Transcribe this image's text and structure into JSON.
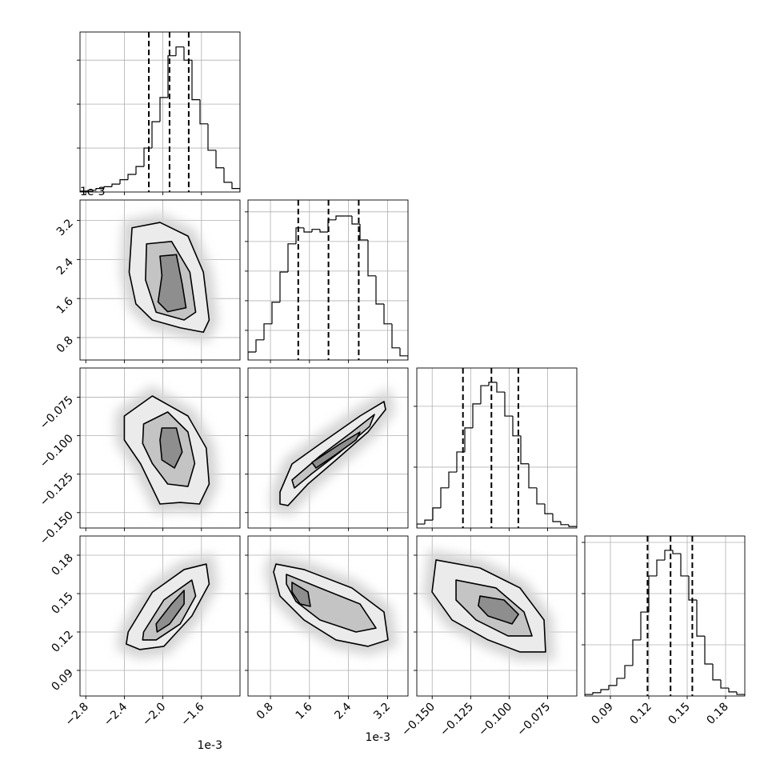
{
  "chart_data": {
    "type": "corner",
    "grid": true,
    "parameters": [
      {
        "offset_label": "1e-3",
        "lim": [
          -2.86,
          -1.2
        ],
        "ticks": [
          {
            "value": -2.8,
            "label": "−2.8"
          },
          {
            "value": -2.4,
            "label": "−2.4"
          },
          {
            "value": -2.0,
            "label": "−2.0"
          },
          {
            "value": -1.6,
            "label": "−1.6"
          }
        ],
        "bins": [
          -2.86,
          -2.777,
          -2.694,
          -2.611,
          -2.528,
          -2.445,
          -2.362,
          -2.279,
          -2.196,
          -2.113,
          -2.03,
          -1.947,
          -1.864,
          -1.781,
          -1.698,
          -1.615,
          -1.532,
          -1.449,
          -1.366,
          -1.283,
          -1.2
        ],
        "counts": [
          2,
          4,
          8,
          12,
          18,
          28,
          40,
          58,
          100,
          160,
          215,
          310,
          330,
          300,
          210,
          155,
          95,
          55,
          22,
          8
        ],
        "hist_ylim": [
          0,
          364
        ],
        "hist_yticks": [
          100,
          200,
          300
        ],
        "quantiles": [
          -2.146,
          -1.931,
          -1.732
        ]
      },
      {
        "offset_label": "1e-3",
        "lim": [
          0.34,
          3.62
        ],
        "ticks": [
          0.8,
          1.6,
          2.4,
          3.2
        ],
        "bins": [
          0.34,
          0.504,
          0.668,
          0.832,
          0.996,
          1.16,
          1.324,
          1.488,
          1.652,
          1.816,
          1.98,
          2.144,
          2.308,
          2.472,
          2.636,
          2.8,
          2.964,
          3.128,
          3.292,
          3.456,
          3.62
        ],
        "counts": [
          27,
          68,
          122,
          195,
          297,
          392,
          446,
          432,
          441,
          432,
          473,
          486,
          486,
          459,
          405,
          284,
          189,
          122,
          41,
          14
        ],
        "hist_ylim": [
          0,
          540
        ],
        "hist_yticks": [
          100,
          200,
          300,
          400,
          500
        ],
        "quantiles": [
          1.37,
          1.99,
          2.61
        ]
      },
      {
        "lim": [
          -0.16,
          -0.056
        ],
        "ticks": [
          {
            "value": -0.15,
            "label": "−0.150"
          },
          {
            "value": -0.125,
            "label": "−0.125"
          },
          {
            "value": -0.1,
            "label": "−0.100"
          },
          {
            "value": -0.075,
            "label": "−0.075"
          }
        ],
        "bins": [
          -0.16,
          -0.1548,
          -0.1496,
          -0.1444,
          -0.1392,
          -0.134,
          -0.1288,
          -0.1236,
          -0.1184,
          -0.1132,
          -0.108,
          -0.1028,
          -0.0976,
          -0.0924,
          -0.0872,
          -0.082,
          -0.0768,
          -0.0716,
          -0.0664,
          -0.0612,
          -0.056
        ],
        "counts": [
          13,
          26,
          66,
          132,
          184,
          250,
          329,
          408,
          468,
          479,
          447,
          368,
          303,
          211,
          132,
          79,
          47,
          21,
          11,
          5
        ],
        "hist_ylim": [
          0,
          526
        ],
        "hist_yticks": [
          200,
          400
        ],
        "quantiles": [
          -0.13,
          -0.1115,
          -0.094
        ]
      },
      {
        "lim": [
          0.07,
          0.195
        ],
        "ticks": [
          0.09,
          0.12,
          0.15,
          0.18
        ],
        "bins": [
          0.07,
          0.07625,
          0.0825,
          0.08875,
          0.095,
          0.10125,
          0.1075,
          0.11375,
          0.12,
          0.12625,
          0.1325,
          0.13875,
          0.145,
          0.15125,
          0.1575,
          0.16375,
          0.17,
          0.17625,
          0.1825,
          0.18875,
          0.195
        ],
        "counts": [
          6,
          13,
          25,
          41,
          69,
          119,
          219,
          328,
          469,
          531,
          569,
          556,
          469,
          375,
          234,
          125,
          63,
          31,
          16,
          6
        ],
        "hist_ylim": [
          0,
          625
        ],
        "hist_yticks": [
          200,
          400,
          600
        ],
        "quantiles": [
          0.119,
          0.137,
          0.154
        ]
      }
    ],
    "pairs": [
      {
        "x_param": 0,
        "y_param": 1,
        "contours": [
          {
            "x": [
              -2.32,
              -2.03,
              -1.74,
              -1.58,
              -1.52,
              -1.58,
              -1.82,
              -2.11,
              -2.28,
              -2.35
            ],
            "y": [
              3.05,
              3.16,
              2.88,
              2.14,
              1.16,
              0.91,
              1.0,
              1.16,
              1.49,
              2.14
            ]
          },
          {
            "x": [
              -2.17,
              -1.91,
              -1.72,
              -1.66,
              -1.78,
              -2.07,
              -2.18
            ],
            "y": [
              2.72,
              2.77,
              2.14,
              1.32,
              1.16,
              1.32,
              1.98
            ]
          },
          {
            "x": [
              -2.03,
              -1.86,
              -1.8,
              -1.76,
              -1.95,
              -2.05,
              -2.01
            ],
            "y": [
              2.47,
              2.5,
              1.9,
              1.41,
              1.33,
              1.53,
              2.07
            ]
          }
        ]
      },
      {
        "x_param": 0,
        "y_param": 2,
        "contours": [
          {
            "x": [
              -2.4,
              -2.11,
              -1.74,
              -1.55,
              -1.52,
              -1.62,
              -1.82,
              -2.03,
              -2.11,
              -2.23,
              -2.4
            ],
            "y": [
              -0.0872,
              -0.0742,
              -0.0872,
              -0.108,
              -0.1314,
              -0.1444,
              -0.1434,
              -0.1444,
              -0.134,
              -0.1184,
              -0.1028
            ]
          },
          {
            "x": [
              -2.2,
              -1.95,
              -1.74,
              -1.67,
              -1.74,
              -1.95,
              -2.11,
              -2.21
            ],
            "y": [
              -0.0924,
              -0.0846,
              -0.0976,
              -0.118,
              -0.133,
              -0.1314,
              -0.118,
              -0.105
            ]
          },
          {
            "x": [
              -2.01,
              -1.86,
              -1.8,
              -1.88,
              -2.01,
              -2.03
            ],
            "y": [
              -0.095,
              -0.095,
              -0.1106,
              -0.121,
              -0.1158,
              -0.1028
            ]
          }
        ]
      },
      {
        "x_param": 0,
        "y_param": 3,
        "contours": [
          {
            "x": [
              -2.36,
              -2.11,
              -1.78,
              -1.55,
              -1.52,
              -1.7,
              -1.99,
              -2.24,
              -2.38
            ],
            "y": [
              0.12,
              0.151,
              0.1688,
              0.1731,
              0.1575,
              0.1325,
              0.1088,
              0.1063,
              0.1106
            ]
          },
          {
            "x": [
              -2.2,
              -1.99,
              -1.7,
              -1.66,
              -1.82,
              -2.07,
              -2.21
            ],
            "y": [
              0.12,
              0.145,
              0.1606,
              0.1481,
              0.1263,
              0.1138,
              0.1138
            ]
          },
          {
            "x": [
              -2.07,
              -1.91,
              -1.78,
              -1.78,
              -1.93,
              -2.06
            ],
            "y": [
              0.1263,
              0.1419,
              0.1525,
              0.1419,
              0.1263,
              0.12
            ]
          }
        ]
      },
      {
        "x_param": 1,
        "y_param": 2,
        "contours": [
          {
            "x": [
              0.996,
              1.242,
              1.816,
              2.636,
              3.128,
              3.161,
              2.8,
              2.144,
              1.57,
              1.16,
              0.996
            ],
            "y": [
              -0.1366,
              -0.1184,
              -0.1054,
              -0.0872,
              -0.0778,
              -0.083,
              -0.0976,
              -0.1158,
              -0.1314,
              -0.1454,
              -0.1444
            ]
          },
          {
            "x": [
              1.242,
              1.816,
              2.472,
              2.931,
              2.833,
              2.226,
              1.652,
              1.291
            ],
            "y": [
              -0.1288,
              -0.1132,
              -0.0976,
              -0.0862,
              -0.094,
              -0.1106,
              -0.1246,
              -0.134
            ]
          },
          {
            "x": [
              1.652,
              2.226,
              2.636,
              2.554,
              2.144,
              1.734
            ],
            "y": [
              -0.1174,
              -0.1054,
              -0.0976,
              -0.1028,
              -0.1122,
              -0.121
            ]
          }
        ]
      },
      {
        "x_param": 1,
        "y_param": 3,
        "contours": [
          {
            "x": [
              0.914,
              1.488,
              2.472,
              3.128,
              3.21,
              2.8,
              2.144,
              1.488,
              0.996,
              0.865
            ],
            "y": [
              0.1731,
              0.1688,
              0.1544,
              0.1356,
              0.1138,
              0.1088,
              0.1138,
              0.1294,
              0.1481,
              0.1669
            ]
          },
          {
            "x": [
              1.127,
              1.816,
              2.636,
              2.964,
              2.554,
              1.816,
              1.324,
              1.127
            ],
            "y": [
              0.165,
              0.1544,
              0.1419,
              0.1231,
              0.12,
              0.1294,
              0.1438,
              0.1575
            ]
          },
          {
            "x": [
              1.242,
              1.57,
              1.619,
              1.406,
              1.242
            ],
            "y": [
              0.1588,
              0.1513,
              0.14,
              0.1419,
              0.1513
            ]
          }
        ]
      },
      {
        "x_param": 2,
        "y_param": 3,
        "contours": [
          {
            "x": [
              -0.1475,
              -0.1189,
              -0.0929,
              -0.0773,
              -0.0763,
              -0.0929,
              -0.1137,
              -0.1371,
              -0.1501
            ],
            "y": [
              0.1763,
              0.17,
              0.1544,
              0.1294,
              0.1044,
              0.1044,
              0.1138,
              0.1294,
              0.1513
            ]
          },
          {
            "x": [
              -0.1345,
              -0.1085,
              -0.0903,
              -0.0851,
              -0.1007,
              -0.1215,
              -0.1345
            ],
            "y": [
              0.1606,
              0.1544,
              0.1356,
              0.1169,
              0.1169,
              0.1294,
              0.145
            ]
          },
          {
            "x": [
              -0.1189,
              -0.1033,
              -0.0939,
              -0.0981,
              -0.1137,
              -0.12
            ],
            "y": [
              0.1481,
              0.145,
              0.1338,
              0.1263,
              0.1325,
              0.1406
            ]
          }
        ]
      }
    ]
  }
}
